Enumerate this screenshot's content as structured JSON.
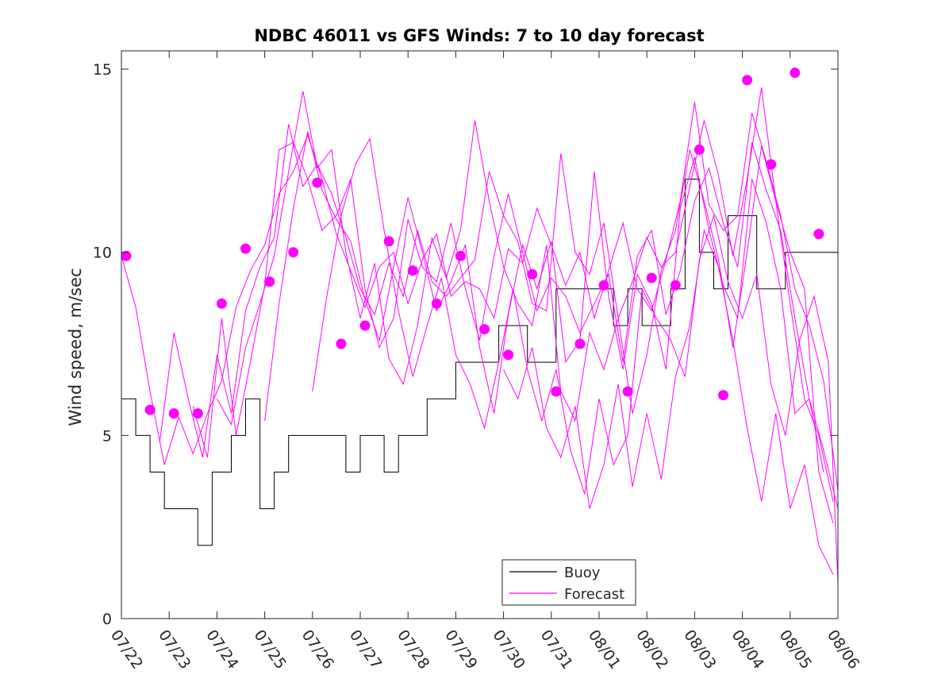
{
  "chart_data": {
    "type": "line",
    "title": "NDBC 46011 vs GFS Winds: 7 to 10 day forecast",
    "xlabel": "",
    "ylabel": "Wind speed, m/sec",
    "x_ticks": [
      "07/22",
      "07/23",
      "07/24",
      "07/25",
      "07/26",
      "07/27",
      "07/28",
      "07/29",
      "07/30",
      "07/31",
      "08/01",
      "08/02",
      "08/03",
      "08/04",
      "08/05",
      "08/06"
    ],
    "xlim": [
      0,
      15
    ],
    "ylim": [
      0,
      15.5
    ],
    "y_ticks": [
      0,
      5,
      10,
      15
    ],
    "grid": false,
    "legend_placement": "bottom-center",
    "legend": [
      {
        "label": "Buoy",
        "color": "#000000"
      },
      {
        "label": "Forecast",
        "color": "#ff00ff"
      }
    ],
    "colors": {
      "buoy": "#000000",
      "forecast": "#ff00ff"
    },
    "x_unit_note": "days since 07/22 00:00",
    "series": [
      {
        "name": "Buoy",
        "kind": "step",
        "x": [
          0,
          0.3,
          0.6,
          0.9,
          1.3,
          1.6,
          1.9,
          2.3,
          2.6,
          2.9,
          3.2,
          3.5,
          3.8,
          4.1,
          4.4,
          4.7,
          5.0,
          5.2,
          5.5,
          5.8,
          6.1,
          6.4,
          6.7,
          7.0,
          7.3,
          7.6,
          7.9,
          8.2,
          8.5,
          8.8,
          9.1,
          9.4,
          9.7,
          10.0,
          10.3,
          10.6,
          10.9,
          11.2,
          11.5,
          11.8,
          12.1,
          12.4,
          12.7,
          13.0,
          13.3,
          13.6,
          13.9,
          14.2,
          14.5,
          14.8,
          15.0
        ],
        "values": [
          6,
          5,
          4,
          3,
          3,
          2,
          4,
          5,
          6,
          3,
          4,
          5,
          5,
          5,
          5,
          4,
          5,
          5,
          4,
          5,
          5,
          6,
          6,
          7,
          7,
          7,
          8,
          8,
          7,
          7,
          9,
          9,
          9,
          9,
          8,
          9,
          8,
          8,
          9,
          12,
          10,
          9,
          11,
          11,
          9,
          9,
          10,
          10,
          10,
          10,
          10
        ]
      },
      {
        "name": "Forecast",
        "kind": "line",
        "x": [
          0,
          0.3,
          0.6,
          0.9,
          1.2,
          1.5,
          1.8,
          2.1,
          2.4,
          2.7,
          3.0,
          3.3,
          3.6,
          3.9,
          4.2,
          4.5,
          4.8,
          5.1,
          5.4,
          5.7,
          6.0,
          6.3,
          6.6,
          6.9,
          7.2,
          7.5,
          7.8,
          8.1,
          8.4,
          8.7,
          9.0,
          9.3,
          9.6,
          9.9,
          10.2,
          10.5,
          10.8,
          11.1,
          11.4,
          11.7,
          12.0,
          12.3,
          12.6,
          12.9,
          13.2,
          13.5,
          13.8,
          14.1,
          14.4,
          14.7,
          15.0
        ],
        "values": [
          9.9,
          8.5,
          6.2,
          4.2,
          5.5,
          4.5,
          5.6,
          6.5,
          8.5,
          9.5,
          10.2,
          11.6,
          12.2,
          13.2,
          12.0,
          10.5,
          9.5,
          8.5,
          9.6,
          10.0,
          8.6,
          9.8,
          10.5,
          8.8,
          9.2,
          9.0,
          8.2,
          10.1,
          9.7,
          11.2,
          10.2,
          9.1,
          10.0,
          8.2,
          9.5,
          10.8,
          9.0,
          8.4,
          9.8,
          11.4,
          14.1,
          11.3,
          10.6,
          11.0,
          13.8,
          12.5,
          11.0,
          9.0,
          8.0,
          6.5,
          3.5
        ]
      },
      {
        "name": "Forecast",
        "kind": "line",
        "x": [
          0.8,
          1.1,
          1.4,
          1.7,
          2.0,
          2.3,
          2.6,
          2.9,
          3.2,
          3.5,
          3.8,
          4.1,
          4.4,
          4.7,
          5.0,
          5.3,
          5.6,
          5.9,
          6.2,
          6.5,
          6.8,
          7.1,
          7.4,
          7.7,
          8.0,
          8.3,
          8.6,
          8.9,
          9.2,
          9.5,
          9.8,
          10.1,
          10.4,
          10.7,
          11.0,
          11.3,
          11.6,
          11.9,
          12.2,
          12.5,
          12.8,
          13.1,
          13.4,
          13.7,
          14.0,
          14.3,
          14.6,
          14.9
        ],
        "values": [
          4.8,
          7.8,
          6.0,
          4.4,
          7.2,
          5.6,
          8.4,
          9.6,
          10.4,
          13.5,
          11.8,
          12.4,
          11.6,
          10.4,
          9.0,
          8.3,
          9.7,
          8.8,
          10.6,
          9.2,
          8.8,
          9.3,
          9.8,
          12.2,
          11.0,
          10.3,
          8.6,
          8.4,
          12.7,
          10.0,
          9.4,
          10.8,
          8.2,
          9.2,
          10.4,
          9.6,
          10.0,
          11.8,
          13.6,
          12.1,
          9.9,
          12.0,
          14.5,
          11.4,
          10.0,
          9.0,
          4.0,
          2.6
        ]
      },
      {
        "name": "Forecast",
        "kind": "line",
        "x": [
          1.5,
          1.8,
          2.1,
          2.4,
          2.7,
          3.0,
          3.3,
          3.6,
          3.9,
          4.2,
          4.5,
          4.8,
          5.1,
          5.4,
          5.7,
          6.0,
          6.3,
          6.6,
          6.9,
          7.2,
          7.5,
          7.8,
          8.1,
          8.4,
          8.7,
          9.0,
          9.3,
          9.6,
          9.9,
          10.2,
          10.5,
          10.8,
          11.1,
          11.4,
          11.7,
          12.0,
          12.3,
          12.6,
          12.9,
          13.2,
          13.5,
          13.8,
          14.1,
          14.4,
          14.7
        ],
        "values": [
          5.8,
          4.4,
          8.2,
          5.0,
          7.0,
          9.1,
          12.8,
          13.0,
          12.0,
          10.6,
          11.0,
          12.0,
          9.0,
          7.4,
          8.2,
          10.9,
          9.6,
          9.2,
          10.8,
          9.0,
          7.6,
          9.9,
          11.6,
          10.0,
          8.4,
          9.3,
          8.8,
          7.8,
          8.6,
          9.4,
          7.0,
          9.9,
          10.6,
          8.3,
          9.5,
          11.4,
          12.3,
          10.8,
          9.6,
          13.0,
          11.7,
          10.6,
          8.2,
          6.0,
          4.0
        ]
      },
      {
        "name": "Forecast",
        "kind": "line",
        "x": [
          2.0,
          2.3,
          2.6,
          2.9,
          3.2,
          3.5,
          3.8,
          4.1,
          4.4,
          4.7,
          5.0,
          5.3,
          5.6,
          5.9,
          6.2,
          6.5,
          6.8,
          7.1,
          7.4,
          7.7,
          8.0,
          8.3,
          8.6,
          8.9,
          9.2,
          9.5,
          9.8,
          10.1,
          10.4,
          10.7,
          11.0,
          11.3,
          11.6,
          11.9,
          12.2,
          12.5,
          12.8,
          13.1,
          13.4,
          13.7,
          14.0,
          14.3,
          14.6,
          14.9
        ],
        "values": [
          6.0,
          5.3,
          7.4,
          8.6,
          9.9,
          12.2,
          14.4,
          12.3,
          12.8,
          10.0,
          8.2,
          9.7,
          7.1,
          6.4,
          8.0,
          10.4,
          9.3,
          10.6,
          13.6,
          11.4,
          9.6,
          8.6,
          8.0,
          10.2,
          6.2,
          5.4,
          7.8,
          6.8,
          8.2,
          5.6,
          7.2,
          9.5,
          10.6,
          12.8,
          11.4,
          9.8,
          7.4,
          10.0,
          12.9,
          11.4,
          8.6,
          6.0,
          5.0,
          3.2
        ]
      },
      {
        "name": "Forecast",
        "kind": "line",
        "x": [
          3.0,
          3.3,
          3.6,
          3.9,
          4.2,
          4.5,
          4.8,
          5.1,
          5.4,
          5.7,
          6.0,
          6.3,
          6.6,
          6.9,
          7.2,
          7.5,
          7.8,
          8.1,
          8.4,
          8.7,
          9.0,
          9.3,
          9.6,
          9.9,
          10.2,
          10.5,
          10.8,
          11.1,
          11.4,
          11.7,
          12.0,
          12.3,
          12.6,
          12.9,
          13.2,
          13.5,
          13.8,
          14.1,
          14.4,
          14.7,
          15.0
        ],
        "values": [
          5.4,
          8.6,
          11.2,
          13.3,
          11.7,
          10.9,
          10.3,
          8.7,
          7.6,
          9.6,
          11.5,
          10.0,
          8.4,
          9.2,
          10.2,
          7.4,
          5.6,
          8.3,
          10.2,
          9.0,
          10.3,
          7.0,
          7.6,
          12.2,
          8.8,
          6.8,
          9.4,
          8.6,
          6.8,
          11.2,
          12.6,
          10.6,
          9.1,
          8.2,
          12.0,
          10.8,
          9.0,
          5.6,
          6.0,
          4.6,
          3.0
        ]
      },
      {
        "name": "Forecast",
        "kind": "line",
        "x": [
          4.0,
          4.3,
          4.6,
          4.9,
          5.2,
          5.5,
          5.8,
          6.1,
          6.4,
          6.7,
          7.0,
          7.3,
          7.6,
          7.9,
          8.2,
          8.5,
          8.8,
          9.1,
          9.4,
          9.7,
          10.0,
          10.3,
          10.6,
          10.9,
          11.2,
          11.5,
          11.8,
          12.1,
          12.4,
          12.7,
          13.0,
          13.3,
          13.6,
          13.9,
          14.2,
          14.5,
          14.8,
          15.0
        ],
        "values": [
          6.2,
          8.8,
          11.0,
          12.4,
          13.1,
          10.6,
          8.4,
          6.6,
          8.0,
          9.3,
          7.2,
          6.4,
          5.2,
          7.0,
          9.0,
          6.8,
          5.4,
          6.8,
          4.6,
          3.4,
          6.0,
          4.2,
          5.0,
          9.0,
          8.2,
          7.6,
          6.6,
          9.8,
          11.0,
          9.2,
          8.2,
          9.4,
          6.4,
          5.0,
          7.6,
          8.8,
          7.0,
          1.0
        ]
      },
      {
        "name": "Forecast",
        "kind": "line",
        "x": [
          8.0,
          8.3,
          8.6,
          8.9,
          9.2,
          9.5,
          9.8,
          10.1,
          10.4,
          10.7,
          11.0,
          11.3,
          11.6,
          11.9,
          12.2,
          12.5,
          12.8,
          13.1,
          13.4,
          13.7,
          14.0,
          14.3,
          14.6,
          14.9
        ],
        "values": [
          6.8,
          6.0,
          7.4,
          5.2,
          4.4,
          5.8,
          3.0,
          4.2,
          6.4,
          3.6,
          5.6,
          3.8,
          6.6,
          8.0,
          10.6,
          9.6,
          7.6,
          5.2,
          3.2,
          5.6,
          3.0,
          4.2,
          2.0,
          1.2
        ]
      }
    ],
    "markers": {
      "name": "Forecast",
      "x": [
        0.1,
        0.6,
        1.1,
        1.6,
        2.1,
        2.6,
        3.1,
        3.6,
        4.1,
        4.6,
        5.1,
        5.6,
        6.1,
        6.6,
        7.1,
        7.6,
        8.1,
        8.6,
        9.1,
        9.6,
        10.1,
        10.6,
        11.1,
        11.6,
        12.1,
        12.6,
        13.1,
        13.6,
        14.1,
        14.6
      ],
      "values": [
        9.9,
        5.7,
        5.6,
        5.6,
        8.6,
        10.1,
        9.2,
        10.0,
        11.9,
        7.5,
        8.0,
        10.3,
        9.5,
        8.6,
        9.9,
        7.9,
        7.2,
        9.4,
        6.2,
        7.5,
        9.1,
        6.2,
        9.3,
        9.1,
        12.8,
        6.1,
        14.7,
        12.4,
        14.9,
        10.5
      ]
    }
  }
}
